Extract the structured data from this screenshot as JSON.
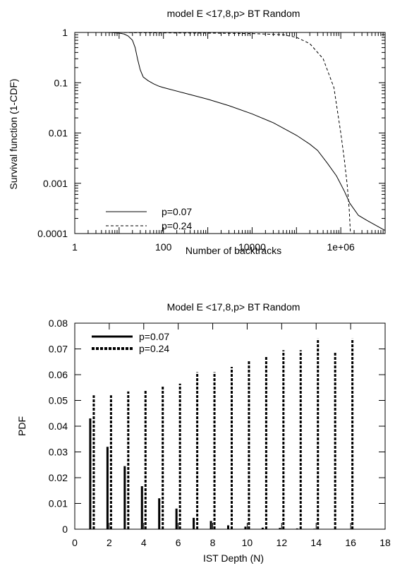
{
  "chart_data": [
    {
      "type": "line",
      "title": "model E <17,8,p> BT Random",
      "xlabel": "Number of backtracks",
      "ylabel": "Survival function (1-CDF)",
      "x_scale": "log",
      "y_scale": "log",
      "xlim": [
        1,
        10000000
      ],
      "ylim": [
        0.0001,
        1
      ],
      "x_ticks": [
        {
          "value": 1,
          "label": "1"
        },
        {
          "value": 100,
          "label": "100"
        },
        {
          "value": 10000,
          "label": "10000"
        },
        {
          "value": 1000000,
          "label": "1e+06"
        }
      ],
      "y_ticks": [
        {
          "value": 1,
          "label": "1"
        },
        {
          "value": 0.1,
          "label": "0.1"
        },
        {
          "value": 0.01,
          "label": "0.01"
        },
        {
          "value": 0.001,
          "label": "0.001"
        },
        {
          "value": 0.0001,
          "label": "0.0001"
        }
      ],
      "legend_position": "bottom-left",
      "series": [
        {
          "name": "p=0.07",
          "style": "solid",
          "points": [
            [
              1,
              1
            ],
            [
              5,
              1
            ],
            [
              7,
              0.99
            ],
            [
              10,
              0.97
            ],
            [
              13,
              0.93
            ],
            [
              16,
              0.85
            ],
            [
              20,
              0.7
            ],
            [
              23,
              0.5
            ],
            [
              26,
              0.3
            ],
            [
              30,
              0.18
            ],
            [
              35,
              0.13
            ],
            [
              45,
              0.11
            ],
            [
              60,
              0.095
            ],
            [
              80,
              0.085
            ],
            [
              100,
              0.08
            ],
            [
              300,
              0.062
            ],
            [
              1000,
              0.047
            ],
            [
              3000,
              0.035
            ],
            [
              10000,
              0.024
            ],
            [
              30000,
              0.016
            ],
            [
              100000,
              0.009
            ],
            [
              200000,
              0.006
            ],
            [
              300000,
              0.0045
            ],
            [
              500000,
              0.0025
            ],
            [
              800000,
              0.0014
            ],
            [
              1200000,
              0.0007
            ],
            [
              1600000,
              0.0004
            ],
            [
              2500000,
              0.00023
            ],
            [
              4000000,
              0.00018
            ],
            [
              10000000,
              0.000115
            ]
          ]
        },
        {
          "name": "p=0.24",
          "style": "dashed",
          "points": [
            [
              1,
              1
            ],
            [
              10,
              1
            ],
            [
              20,
              0.99
            ],
            [
              100,
              0.98
            ],
            [
              1000,
              0.97
            ],
            [
              10000,
              0.95
            ],
            [
              50000,
              0.9
            ],
            [
              100000,
              0.8
            ],
            [
              200000,
              0.6
            ],
            [
              400000,
              0.3
            ],
            [
              700000,
              0.08
            ],
            [
              1000000,
              0.01
            ],
            [
              1200000,
              0.003
            ],
            [
              1400000,
              0.0009
            ],
            [
              1550000,
              0.0003
            ],
            [
              1650000,
              0.0001
            ]
          ]
        }
      ]
    },
    {
      "type": "bar",
      "title": "Model E <17,8,p> BT Random",
      "xlabel": "IST Depth (N)",
      "ylabel": "PDF",
      "xlim": [
        0,
        18
      ],
      "ylim": [
        0,
        0.08
      ],
      "x_ticks": [
        0,
        2,
        4,
        6,
        8,
        10,
        12,
        14,
        16,
        18
      ],
      "y_ticks": [
        "0",
        "0.01",
        "0.02",
        "0.03",
        "0.04",
        "0.05",
        "0.06",
        "0.07",
        "0.08"
      ],
      "legend_position": "top-left",
      "categories": [
        1,
        2,
        3,
        4,
        5,
        6,
        7,
        8,
        9,
        10,
        11,
        12,
        13,
        14,
        15,
        16
      ],
      "series": [
        {
          "name": "p=0.07",
          "style": "solid",
          "values": [
            0.043,
            0.032,
            0.0245,
            0.0167,
            0.012,
            0.008,
            0.0044,
            0.0032,
            0.0015,
            0.001,
            0.0006,
            0.0005,
            0.0003,
            0.0002,
            0.0001,
            0.0001
          ]
        },
        {
          "name": "p=0.24",
          "style": "dashed",
          "values": [
            0.052,
            0.052,
            0.0535,
            0.0537,
            0.0555,
            0.0565,
            0.061,
            0.061,
            0.063,
            0.0655,
            0.067,
            0.0695,
            0.0695,
            0.074,
            0.069,
            0.074
          ]
        }
      ]
    }
  ]
}
